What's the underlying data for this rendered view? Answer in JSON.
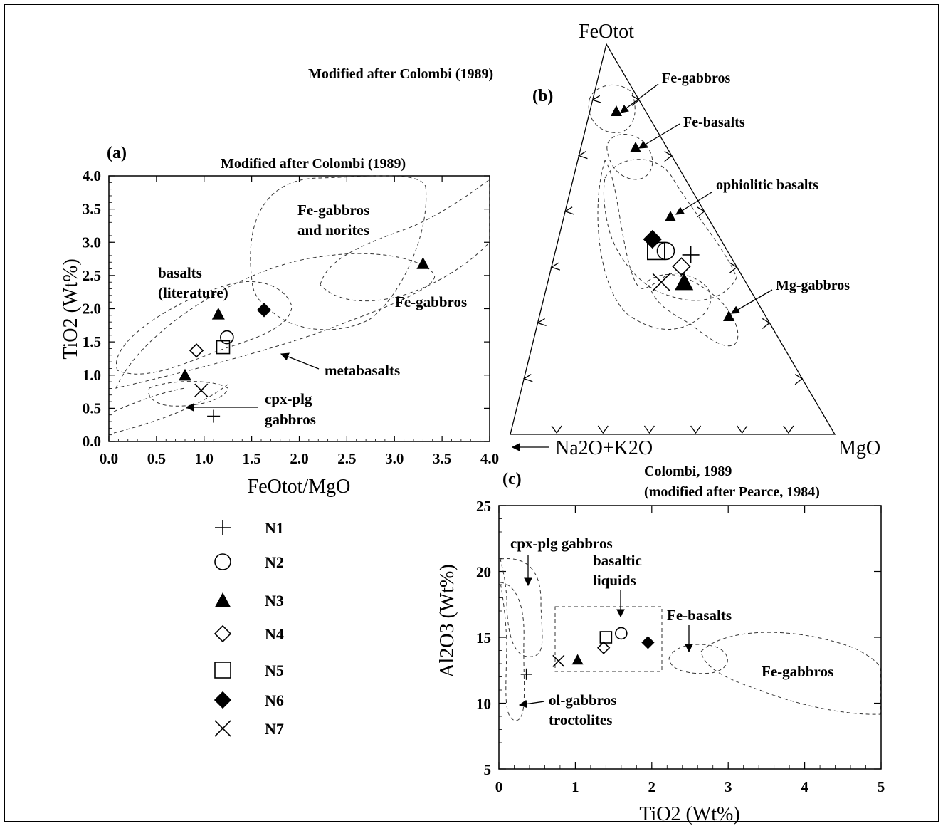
{
  "panels": {
    "a": {
      "label": "(a)",
      "source": "Modified after Colombi (1989)",
      "xlabel": "FeOtot/MgO",
      "ylabel": "TiO2 (Wt%)",
      "xticks": [
        "0.0",
        "0.5",
        "1.0",
        "1.5",
        "2.0",
        "2.5",
        "3.0",
        "3.5",
        "4.0"
      ],
      "yticks": [
        "0.0",
        "0.5",
        "1.0",
        "1.5",
        "2.0",
        "2.5",
        "3.0",
        "3.5",
        "4.0"
      ],
      "field_labels": {
        "fe_gabbros_norites_1": "Fe-gabbros",
        "fe_gabbros_norites_2": "and norites",
        "basalts_1": "basalts",
        "basalts_2": "(literature)",
        "fe_gabbros": "Fe-gabbros",
        "metabasalts": "metabasalts",
        "cpx_plg_1": "cpx-plg",
        "cpx_plg_2": "gabbros"
      }
    },
    "b": {
      "label": "(b)",
      "source": "Modified after Colombi (1989)",
      "apex_top": "FeOtot",
      "apex_left": "Na2O+K2O",
      "apex_right": "MgO",
      "field_labels": {
        "fe_gabbros": "Fe-gabbros",
        "fe_basalts": "Fe-basalts",
        "ophiolitic": "ophiolitic basalts",
        "mg_gabbros": "Mg-gabbros"
      }
    },
    "c": {
      "label": "(c)",
      "source_1": "Colombi, 1989",
      "source_2": "(modified after Pearce, 1984)",
      "xlabel": "TiO2 (Wt%)",
      "ylabel": "Al2O3 (Wt%)",
      "xticks": [
        "0",
        "1",
        "2",
        "3",
        "4",
        "5"
      ],
      "yticks": [
        "5",
        "10",
        "15",
        "20",
        "25"
      ],
      "field_labels": {
        "cpx_plg": "cpx-plg gabbros",
        "basaltic_1": "basaltic",
        "basaltic_2": "liquids",
        "fe_basalts": "Fe-basalts",
        "fe_gabbros": "Fe-gabbros",
        "ol_1": "ol-gabbros",
        "ol_2": "troctolites"
      }
    }
  },
  "legend": [
    {
      "name": "N1",
      "marker": "plus"
    },
    {
      "name": "N2",
      "marker": "circle-open"
    },
    {
      "name": "N3",
      "marker": "triangle-filled"
    },
    {
      "name": "N4",
      "marker": "diamond-open"
    },
    {
      "name": "N5",
      "marker": "square-open"
    },
    {
      "name": "N6",
      "marker": "diamond-filled"
    },
    {
      "name": "N7",
      "marker": "cross"
    }
  ],
  "chart_data": [
    {
      "type": "scatter",
      "panel": "(a)",
      "title": "Modified after Colombi (1989)",
      "xlabel": "FeOtot/MgO",
      "ylabel": "TiO2 (Wt%)",
      "xlim": [
        0,
        4
      ],
      "ylim": [
        0,
        4
      ],
      "series": [
        {
          "name": "N1",
          "marker": "plus",
          "x": [
            1.1
          ],
          "y": [
            0.38
          ]
        },
        {
          "name": "N2",
          "marker": "circle-open",
          "x": [
            1.24
          ],
          "y": [
            1.57
          ]
        },
        {
          "name": "N3",
          "marker": "triangle-filled",
          "x": [
            1.15,
            0.8
          ],
          "y": [
            1.92,
            1.0
          ]
        },
        {
          "name": "N4",
          "marker": "diamond-open",
          "x": [
            0.92
          ],
          "y": [
            1.37
          ]
        },
        {
          "name": "N5",
          "marker": "square-open",
          "x": [
            1.2
          ],
          "y": [
            1.42
          ]
        },
        {
          "name": "N6",
          "marker": "diamond-filled",
          "x": [
            1.63
          ],
          "y": [
            1.98
          ]
        },
        {
          "name": "N7",
          "marker": "cross",
          "x": [
            0.97
          ],
          "y": [
            0.77
          ]
        },
        {
          "name": "",
          "marker": "triangle-filled",
          "x": [
            3.3
          ],
          "y": [
            2.68
          ]
        }
      ]
    },
    {
      "type": "scatter",
      "panel": "(b)",
      "title": "Modified after Colombi (1989)",
      "ternary_apices": [
        "FeOtot",
        "Na2O+K2O",
        "MgO"
      ],
      "series": [
        {
          "name": "N1",
          "marker": "plus",
          "FeOtot": 46,
          "MgO": 42,
          "Na2O+K2O": 12
        },
        {
          "name": "N2",
          "marker": "circle-open",
          "FeOtot": 47,
          "MgO": 34,
          "Na2O+K2O": 19
        },
        {
          "name": "N3",
          "marker": "triangle-filled",
          "FeOtot": 39,
          "MgO": 42,
          "Na2O+K2O": 19
        },
        {
          "name": "N4",
          "marker": "diamond-open",
          "FeOtot": 43,
          "MgO": 40,
          "Na2O+K2O": 17
        },
        {
          "name": "N5",
          "marker": "square-open",
          "FeOtot": 47,
          "MgO": 31,
          "Na2O+K2O": 22
        },
        {
          "name": "N6",
          "marker": "diamond-filled",
          "FeOtot": 50,
          "MgO": 29,
          "Na2O+K2O": 21
        },
        {
          "name": "N7",
          "marker": "cross",
          "FeOtot": 39,
          "MgO": 35,
          "Na2O+K2O": 26
        }
      ]
    },
    {
      "type": "scatter",
      "panel": "(c)",
      "title": "Colombi, 1989 (modified after Pearce, 1984)",
      "xlabel": "TiO2 (Wt%)",
      "ylabel": "Al2O3 (Wt%)",
      "xlim": [
        0,
        5
      ],
      "ylim": [
        5,
        25
      ],
      "series": [
        {
          "name": "N1",
          "marker": "plus",
          "x": [
            0.36
          ],
          "y": [
            12.2
          ]
        },
        {
          "name": "N2",
          "marker": "circle-open",
          "x": [
            1.6
          ],
          "y": [
            15.3
          ]
        },
        {
          "name": "N3",
          "marker": "triangle-filled",
          "x": [
            1.03
          ],
          "y": [
            13.3
          ]
        },
        {
          "name": "N4",
          "marker": "diamond-open",
          "x": [
            1.37
          ],
          "y": [
            14.2
          ]
        },
        {
          "name": "N5",
          "marker": "square-open",
          "x": [
            1.4
          ],
          "y": [
            15.0
          ]
        },
        {
          "name": "N6",
          "marker": "diamond-filled",
          "x": [
            1.95
          ],
          "y": [
            14.6
          ]
        },
        {
          "name": "N7",
          "marker": "cross",
          "x": [
            0.78
          ],
          "y": [
            13.2
          ]
        }
      ]
    }
  ]
}
